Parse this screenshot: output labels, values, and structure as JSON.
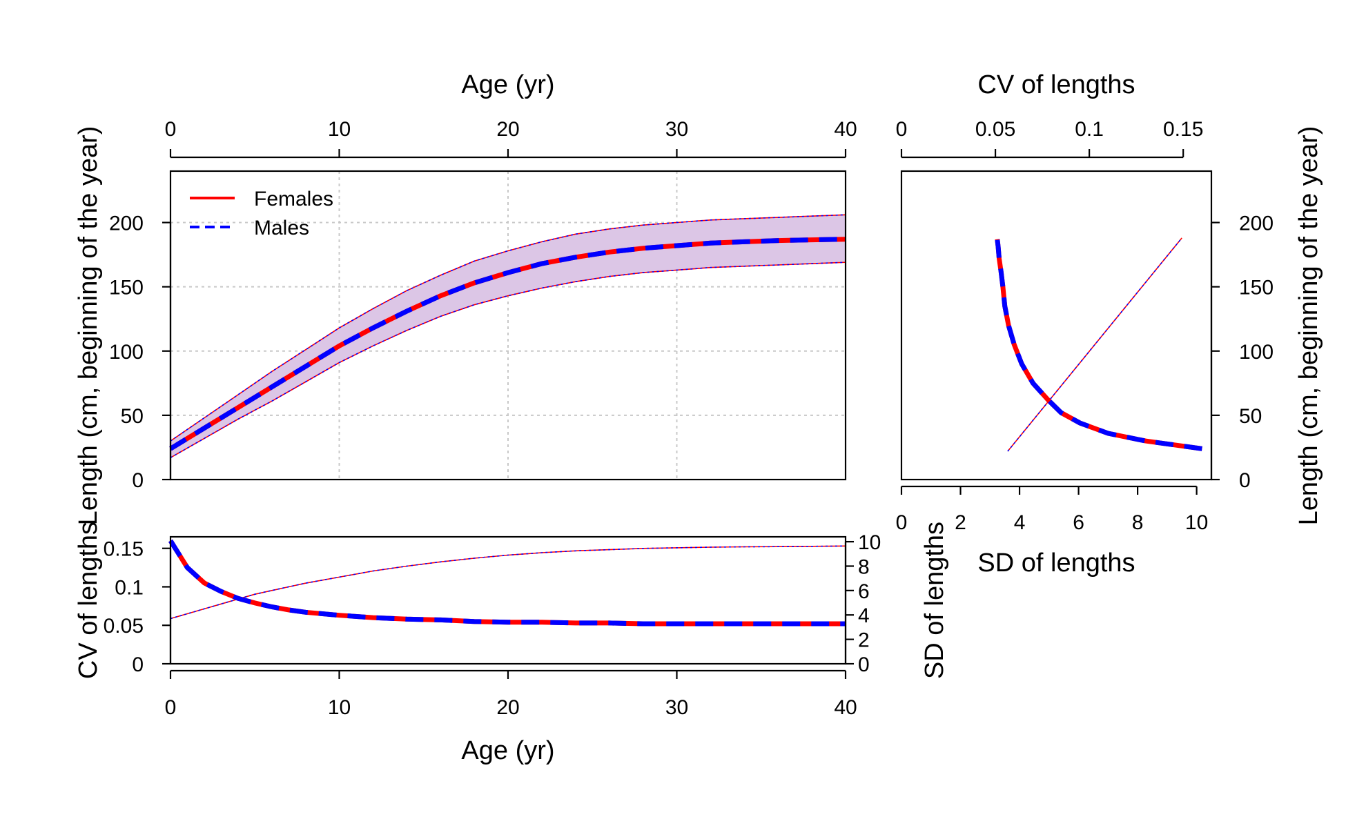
{
  "colors": {
    "females": "#ff0000",
    "males": "#0000ff",
    "band_fill": "#dcc6e6"
  },
  "chart_data": [
    {
      "id": "length-at-age",
      "type": "line",
      "xlabel": "Age (yr)",
      "ylabel": "Length (cm, beginning of the year)",
      "xlim": [
        0,
        40
      ],
      "ylim": [
        0,
        240
      ],
      "xticks": [
        "0",
        "10",
        "20",
        "30",
        "40"
      ],
      "yticks": [
        "0",
        "50",
        "100",
        "150",
        "200"
      ],
      "grid": true,
      "legend_position": "top-left",
      "legend": [
        "Females",
        "Males"
      ],
      "x": [
        0,
        2,
        4,
        6,
        8,
        10,
        12,
        14,
        16,
        18,
        20,
        22,
        24,
        26,
        28,
        30,
        32,
        34,
        36,
        38,
        40
      ],
      "series": [
        {
          "name": "Females",
          "values": [
            24,
            40,
            56,
            72,
            88,
            104,
            118,
            131,
            143,
            153,
            161,
            168,
            173,
            177,
            180,
            182,
            184,
            185,
            186,
            186.5,
            187
          ]
        },
        {
          "name": "Males",
          "values": [
            24,
            40,
            56,
            72,
            88,
            104,
            118,
            131,
            143,
            153,
            161,
            168,
            173,
            177,
            180,
            182,
            184,
            185,
            186,
            186.5,
            187
          ]
        }
      ],
      "interval_upper": [
        30,
        48,
        66,
        84,
        101,
        118,
        133,
        147,
        159,
        170,
        178,
        185,
        191,
        195,
        198,
        200,
        202,
        203,
        204,
        205,
        206
      ],
      "interval_lower": [
        17,
        32,
        47,
        61,
        76,
        91,
        104,
        116,
        127,
        136,
        143,
        149,
        154,
        158,
        161,
        163,
        165,
        166,
        167,
        168,
        169
      ]
    },
    {
      "id": "length-vs-variability",
      "type": "line",
      "xlabel_top": "CV of lengths",
      "xlabel_bottom": "SD of lengths",
      "ylabel": "Length (cm, beginning of the year)",
      "xlim_sd": [
        0,
        10.5
      ],
      "xlim_cv": [
        0,
        0.165
      ],
      "ylim": [
        0,
        240
      ],
      "xticks_sd": [
        "0",
        "2",
        "4",
        "6",
        "8",
        "10"
      ],
      "xticks_cv": [
        "0",
        "0.05",
        "0.1",
        "0.15"
      ],
      "yticks": [
        "0",
        "50",
        "100",
        "150",
        "200"
      ],
      "cv_curve": {
        "cv": [
          0.16,
          0.13,
          0.11,
          0.095,
          0.085,
          0.078,
          0.07,
          0.064,
          0.06,
          0.057,
          0.055,
          0.054,
          0.053,
          0.052,
          0.0515,
          0.051
        ],
        "length": [
          24,
          30,
          36,
          44,
          52,
          62,
          75,
          90,
          105,
          120,
          135,
          150,
          162,
          172,
          181,
          187
        ]
      },
      "sd_line": {
        "sd": [
          3.6,
          9.5
        ],
        "length": [
          22,
          188
        ]
      }
    },
    {
      "id": "variability-at-age",
      "type": "line",
      "xlabel": "Age (yr)",
      "ylabel_left": "CV of lengths",
      "ylabel_right": "SD of lengths",
      "xlim": [
        0,
        40
      ],
      "ylim_cv": [
        0,
        0.165
      ],
      "ylim_sd": [
        0,
        10.4
      ],
      "xticks": [
        "0",
        "10",
        "20",
        "30",
        "40"
      ],
      "yticks_cv": [
        "0",
        "0.05",
        "0.1",
        "0.15"
      ],
      "yticks_sd": [
        "0",
        "2",
        "4",
        "6",
        "8",
        "10"
      ],
      "x": [
        0,
        1,
        2,
        3,
        4,
        5,
        6,
        7,
        8,
        10,
        12,
        14,
        16,
        18,
        20,
        22,
        24,
        26,
        28,
        30,
        32,
        34,
        36,
        38,
        40
      ],
      "cv": [
        0.16,
        0.125,
        0.105,
        0.094,
        0.085,
        0.079,
        0.074,
        0.07,
        0.067,
        0.063,
        0.06,
        0.058,
        0.057,
        0.055,
        0.054,
        0.054,
        0.053,
        0.053,
        0.052,
        0.052,
        0.052,
        0.052,
        0.052,
        0.052,
        0.052
      ],
      "sd": [
        3.7,
        4.1,
        4.5,
        4.9,
        5.3,
        5.7,
        6.0,
        6.3,
        6.6,
        7.1,
        7.6,
        8.0,
        8.35,
        8.65,
        8.9,
        9.1,
        9.25,
        9.35,
        9.45,
        9.5,
        9.55,
        9.58,
        9.6,
        9.62,
        9.65
      ]
    }
  ]
}
